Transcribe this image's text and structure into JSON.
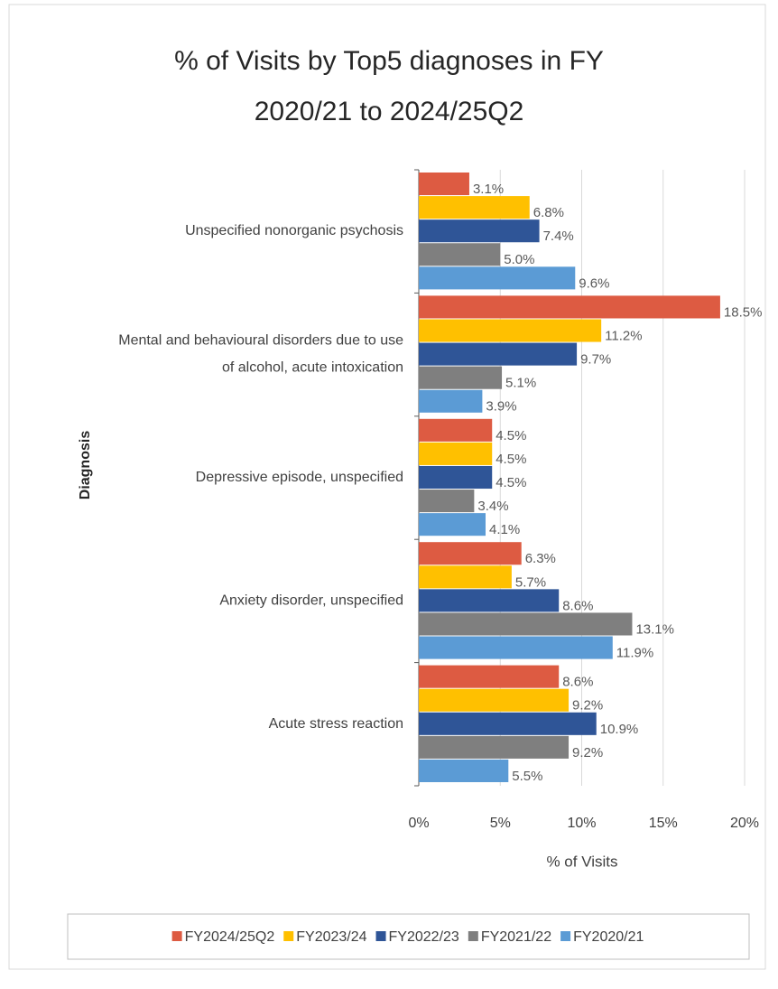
{
  "chart_data": {
    "type": "barh",
    "title": "% of Visits by Top5 diagnoses in FY 2020/21 to 2024/25Q2",
    "xlabel": "% of Visits",
    "ylabel": "Diagnosis",
    "categories": [
      "Unspecified nonorganic psychosis",
      "Mental and behavioural disorders due to use of alcohol, acute intoxication",
      "Depressive episode, unspecified",
      "Anxiety disorder, unspecified",
      "Acute stress reaction"
    ],
    "series": [
      {
        "name": "FY2024/25Q2",
        "color": "#dd5b42",
        "values": [
          3.1,
          18.5,
          4.5,
          6.3,
          8.6
        ],
        "value_labels": [
          "3.1%",
          "18.5%",
          "4.5%",
          "6.3%",
          "8.6%"
        ]
      },
      {
        "name": "FY2023/24",
        "color": "#ffc000",
        "values": [
          6.8,
          11.2,
          4.5,
          5.7,
          9.2
        ],
        "value_labels": [
          "6.8%",
          "11.2%",
          "4.5%",
          "5.7%",
          "9.2%"
        ]
      },
      {
        "name": "FY2022/23",
        "color": "#2f5597",
        "values": [
          7.4,
          9.7,
          4.5,
          8.6,
          10.9
        ],
        "value_labels": [
          "7.4%",
          "9.7%",
          "4.5%",
          "8.6%",
          "10.9%"
        ]
      },
      {
        "name": "FY2021/22",
        "color": "#7f7f7f",
        "values": [
          5.0,
          5.1,
          3.4,
          13.1,
          9.2
        ],
        "value_labels": [
          "5.0%",
          "5.1%",
          "3.4%",
          "13.1%",
          "9.2%"
        ]
      },
      {
        "name": "FY2020/21",
        "color": "#5b9bd5",
        "values": [
          9.6,
          3.9,
          4.1,
          11.9,
          5.5
        ],
        "value_labels": [
          "9.6%",
          "3.9%",
          "4.1%",
          "11.9%",
          "5.5%"
        ]
      }
    ],
    "xlim": [
      0,
      20
    ],
    "xticks": [
      {
        "value": 0,
        "label": "0%"
      },
      {
        "value": 5,
        "label": "5%"
      },
      {
        "value": 10,
        "label": "10%"
      },
      {
        "value": 15,
        "label": "15%"
      },
      {
        "value": 20,
        "label": "20%"
      }
    ],
    "grid": true,
    "legend": "bottom"
  }
}
